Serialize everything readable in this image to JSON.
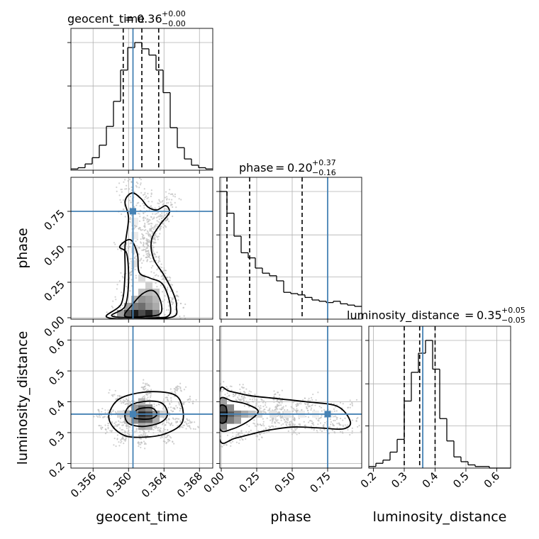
{
  "chart_data": {
    "type": "corner",
    "parameters": [
      "geocent_time",
      "phase",
      "luminosity_distance"
    ],
    "axis_labels": [
      "geocent_time",
      "phase",
      "luminosity_distance"
    ],
    "truths": [
      0.3605,
      0.75,
      0.36
    ],
    "truth_color": "#4682b4",
    "grid": true,
    "ranges": [
      [
        0.3535,
        0.3695
      ],
      [
        -0.01,
        0.99
      ],
      [
        0.185,
        0.645
      ]
    ],
    "ticks": {
      "geocent_time": {
        "values": [
          0.356,
          0.36,
          0.364,
          0.368
        ],
        "labels": [
          "0.356",
          "0.360",
          "0.364",
          "0.368"
        ]
      },
      "phase": {
        "values": [
          0.0,
          0.25,
          0.5,
          0.75
        ],
        "labels": [
          "0.00",
          "0.25",
          "0.50",
          "0.75"
        ]
      },
      "luminosity_distance": {
        "values": [
          0.2,
          0.3,
          0.4,
          0.5,
          0.6
        ],
        "labels": [
          "0.2",
          "0.3",
          "0.4",
          "0.5",
          "0.6"
        ]
      }
    },
    "diagonal_titles": [
      {
        "name": "geocent_time",
        "value": "0.36",
        "plus": "+0.00",
        "minus": "−0.00"
      },
      {
        "name": "phase",
        "value": "0.20",
        "plus": "+0.37",
        "minus": "−0.16"
      },
      {
        "name": "luminosity_distance",
        "value": "0.35",
        "plus": "+0.05",
        "minus": "−0.05"
      }
    ],
    "histograms": [
      {
        "param": "geocent_time",
        "bin_edges": [
          0.3535,
          0.3543,
          0.3551,
          0.3559,
          0.3567,
          0.3575,
          0.3583,
          0.3591,
          0.3599,
          0.3607,
          0.3615,
          0.3623,
          0.3631,
          0.3639,
          0.3647,
          0.3655,
          0.3663,
          0.3671,
          0.3679,
          0.3687,
          0.3695
        ],
        "counts": [
          1,
          2,
          5,
          10,
          20,
          35,
          55,
          80,
          98,
          102,
          97,
          92,
          80,
          62,
          34,
          18,
          9,
          4,
          2,
          1
        ],
        "quantiles": [
          0.3594,
          0.3615,
          0.3634
        ]
      },
      {
        "param": "phase",
        "bin_edges": [
          -0.01,
          0.04,
          0.09,
          0.14,
          0.19,
          0.24,
          0.29,
          0.34,
          0.39,
          0.44,
          0.49,
          0.54,
          0.59,
          0.64,
          0.69,
          0.74,
          0.79,
          0.84,
          0.89,
          0.94,
          0.99
        ],
        "counts": [
          100,
          83,
          65,
          52,
          48,
          40,
          36,
          34,
          30,
          21,
          20,
          19,
          17,
          15,
          14,
          13,
          14,
          12,
          11,
          10
        ],
        "quantiles": [
          0.04,
          0.2,
          0.57
        ]
      },
      {
        "param": "luminosity_distance",
        "bin_edges": [
          0.185,
          0.208,
          0.231,
          0.254,
          0.277,
          0.3,
          0.323,
          0.346,
          0.369,
          0.392,
          0.415,
          0.438,
          0.461,
          0.484,
          0.507,
          0.53,
          0.553,
          0.576,
          0.599,
          0.622,
          0.645
        ],
        "counts": [
          1,
          3,
          5,
          10,
          18,
          42,
          60,
          72,
          80,
          62,
          31,
          17,
          7,
          4,
          2,
          1,
          1,
          0,
          0,
          0
        ],
        "quantiles": [
          0.3,
          0.35,
          0.4
        ]
      }
    ],
    "pairs": [
      {
        "x": "geocent_time",
        "y": "phase",
        "density_blocks": [
          {
            "x": 0.3607,
            "y": 0.03,
            "level": 0.95
          },
          {
            "x": 0.3615,
            "y": 0.03,
            "level": 0.75
          },
          {
            "x": 0.3623,
            "y": 0.03,
            "level": 0.9
          },
          {
            "x": 0.3599,
            "y": 0.03,
            "level": 0.7
          },
          {
            "x": 0.3631,
            "y": 0.03,
            "level": 0.55
          },
          {
            "x": 0.3591,
            "y": 0.03,
            "level": 0.4
          },
          {
            "x": 0.3607,
            "y": 0.08,
            "level": 0.55
          },
          {
            "x": 0.3615,
            "y": 0.08,
            "level": 0.6
          },
          {
            "x": 0.3623,
            "y": 0.08,
            "level": 0.45
          },
          {
            "x": 0.3631,
            "y": 0.08,
            "level": 0.35
          },
          {
            "x": 0.3599,
            "y": 0.08,
            "level": 0.4
          },
          {
            "x": 0.3615,
            "y": 0.13,
            "level": 0.45
          },
          {
            "x": 0.3623,
            "y": 0.13,
            "level": 0.4
          },
          {
            "x": 0.3631,
            "y": 0.13,
            "level": 0.3
          },
          {
            "x": 0.3607,
            "y": 0.13,
            "level": 0.3
          },
          {
            "x": 0.3623,
            "y": 0.18,
            "level": 0.3
          },
          {
            "x": 0.3631,
            "y": 0.18,
            "level": 0.25
          },
          {
            "x": 0.3615,
            "y": 0.18,
            "level": 0.25
          },
          {
            "x": 0.3623,
            "y": 0.23,
            "level": 0.2
          },
          {
            "x": 0.3615,
            "y": 0.28,
            "level": 0.15
          },
          {
            "x": 0.3607,
            "y": 0.38,
            "level": 0.12
          },
          {
            "x": 0.3607,
            "y": 0.48,
            "level": 0.1
          },
          {
            "x": 0.3607,
            "y": 0.58,
            "level": 0.08
          },
          {
            "x": 0.3607,
            "y": 0.68,
            "level": 0.07
          }
        ],
        "contours": [
          {
            "level": "inner",
            "points": [
              [
                0.3596,
                0.01
              ],
              [
                0.3604,
                0.09
              ],
              [
                0.3616,
                0.17
              ],
              [
                0.3628,
                0.19
              ],
              [
                0.3636,
                0.12
              ],
              [
                0.3636,
                0.03
              ],
              [
                0.362,
                0.01
              ]
            ]
          },
          {
            "level": "middle",
            "points": [
              [
                0.3582,
                0.01
              ],
              [
                0.3596,
                0.08
              ],
              [
                0.36,
                0.25
              ],
              [
                0.3598,
                0.45
              ],
              [
                0.359,
                0.5
              ],
              [
                0.3602,
                0.55
              ],
              [
                0.361,
                0.45
              ],
              [
                0.3612,
                0.32
              ],
              [
                0.3624,
                0.28
              ],
              [
                0.3638,
                0.24
              ],
              [
                0.3646,
                0.12
              ],
              [
                0.3646,
                0.02
              ],
              [
                0.363,
                0.0
              ]
            ]
          },
          {
            "level": "outer",
            "points": [
              [
                0.3577,
                0.0
              ],
              [
                0.3592,
                0.1
              ],
              [
                0.3596,
                0.3
              ],
              [
                0.3596,
                0.5
              ],
              [
                0.36,
                0.7
              ],
              [
                0.3596,
                0.82
              ],
              [
                0.3604,
                0.88
              ],
              [
                0.3614,
                0.84
              ],
              [
                0.3622,
                0.78
              ],
              [
                0.3632,
                0.76
              ],
              [
                0.3642,
                0.79
              ],
              [
                0.3646,
                0.74
              ],
              [
                0.3636,
                0.66
              ],
              [
                0.3626,
                0.55
              ],
              [
                0.3628,
                0.42
              ],
              [
                0.364,
                0.3
              ],
              [
                0.365,
                0.18
              ],
              [
                0.3654,
                0.08
              ],
              [
                0.3646,
                0.0
              ]
            ]
          }
        ]
      },
      {
        "x": "geocent_time",
        "y": "luminosity_distance",
        "density_blocks": [
          {
            "x": 0.3615,
            "y": 0.36,
            "level": 0.9
          },
          {
            "x": 0.3623,
            "y": 0.36,
            "level": 0.8
          },
          {
            "x": 0.3607,
            "y": 0.36,
            "level": 0.6
          },
          {
            "x": 0.3615,
            "y": 0.34,
            "level": 0.7
          },
          {
            "x": 0.3623,
            "y": 0.34,
            "level": 0.65
          },
          {
            "x": 0.3615,
            "y": 0.38,
            "level": 0.6
          },
          {
            "x": 0.3623,
            "y": 0.38,
            "level": 0.5
          },
          {
            "x": 0.3607,
            "y": 0.34,
            "level": 0.45
          },
          {
            "x": 0.3631,
            "y": 0.36,
            "level": 0.45
          },
          {
            "x": 0.3599,
            "y": 0.36,
            "level": 0.35
          },
          {
            "x": 0.3607,
            "y": 0.38,
            "level": 0.4
          },
          {
            "x": 0.3631,
            "y": 0.34,
            "level": 0.35
          },
          {
            "x": 0.3615,
            "y": 0.32,
            "level": 0.35
          },
          {
            "x": 0.3623,
            "y": 0.32,
            "level": 0.3
          },
          {
            "x": 0.3615,
            "y": 0.4,
            "level": 0.3
          },
          {
            "x": 0.3599,
            "y": 0.34,
            "level": 0.25
          },
          {
            "x": 0.3639,
            "y": 0.36,
            "level": 0.2
          },
          {
            "x": 0.3591,
            "y": 0.36,
            "level": 0.15
          }
        ],
        "contours": [
          {
            "level": "inner",
            "points": [
              [
                0.3606,
                0.35
              ],
              [
                0.361,
                0.375
              ],
              [
                0.3626,
                0.38
              ],
              [
                0.3632,
                0.36
              ],
              [
                0.3625,
                0.345
              ],
              [
                0.361,
                0.345
              ]
            ]
          },
          {
            "level": "middle",
            "points": [
              [
                0.3596,
                0.36
              ],
              [
                0.3603,
                0.39
              ],
              [
                0.3622,
                0.402
              ],
              [
                0.3638,
                0.395
              ],
              [
                0.3644,
                0.36
              ],
              [
                0.3636,
                0.333
              ],
              [
                0.3616,
                0.32
              ],
              [
                0.36,
                0.33
              ]
            ]
          },
          {
            "level": "outer",
            "points": [
              [
                0.3578,
                0.36
              ],
              [
                0.359,
                0.41
              ],
              [
                0.362,
                0.432
              ],
              [
                0.365,
                0.425
              ],
              [
                0.366,
                0.39
              ],
              [
                0.366,
                0.33
              ],
              [
                0.364,
                0.295
              ],
              [
                0.3616,
                0.285
              ],
              [
                0.3596,
                0.29
              ],
              [
                0.3582,
                0.32
              ]
            ]
          }
        ]
      },
      {
        "x": "phase",
        "y": "luminosity_distance",
        "density_blocks": [
          {
            "x": 0.015,
            "y": 0.36,
            "level": 0.95
          },
          {
            "x": 0.015,
            "y": 0.34,
            "level": 0.8
          },
          {
            "x": 0.015,
            "y": 0.38,
            "level": 0.75
          },
          {
            "x": 0.065,
            "y": 0.36,
            "level": 0.7
          },
          {
            "x": 0.065,
            "y": 0.34,
            "level": 0.55
          },
          {
            "x": 0.065,
            "y": 0.38,
            "level": 0.5
          },
          {
            "x": 0.115,
            "y": 0.36,
            "level": 0.5
          },
          {
            "x": 0.115,
            "y": 0.34,
            "level": 0.4
          },
          {
            "x": 0.165,
            "y": 0.36,
            "level": 0.35
          },
          {
            "x": 0.215,
            "y": 0.36,
            "level": 0.25
          },
          {
            "x": 0.015,
            "y": 0.32,
            "level": 0.45
          },
          {
            "x": 0.015,
            "y": 0.4,
            "level": 0.4
          },
          {
            "x": 0.265,
            "y": 0.36,
            "level": 0.18
          },
          {
            "x": 0.365,
            "y": 0.36,
            "level": 0.12
          },
          {
            "x": 0.465,
            "y": 0.36,
            "level": 0.1
          },
          {
            "x": 0.565,
            "y": 0.36,
            "level": 0.08
          },
          {
            "x": 0.665,
            "y": 0.36,
            "level": 0.07
          },
          {
            "x": 0.765,
            "y": 0.36,
            "level": 0.06
          }
        ],
        "contours": [
          {
            "level": "inner",
            "points": [
              [
                -0.01,
                0.335
              ],
              [
                0.03,
                0.335
              ],
              [
                0.04,
                0.36
              ],
              [
                0.03,
                0.385
              ],
              [
                -0.01,
                0.385
              ]
            ]
          },
          {
            "level": "middle",
            "points": [
              [
                -0.01,
                0.312
              ],
              [
                0.08,
                0.312
              ],
              [
                0.2,
                0.34
              ],
              [
                0.26,
                0.37
              ],
              [
                0.18,
                0.392
              ],
              [
                0.08,
                0.402
              ],
              [
                -0.01,
                0.408
              ]
            ]
          },
          {
            "level": "outer",
            "points": [
              [
                -0.01,
                0.276
              ],
              [
                0.1,
                0.282
              ],
              [
                0.3,
                0.305
              ],
              [
                0.5,
                0.318
              ],
              [
                0.7,
                0.315
              ],
              [
                0.86,
                0.312
              ],
              [
                0.91,
                0.335
              ],
              [
                0.82,
                0.385
              ],
              [
                0.6,
                0.4
              ],
              [
                0.4,
                0.41
              ],
              [
                0.2,
                0.42
              ],
              [
                0.06,
                0.434
              ],
              [
                -0.01,
                0.436
              ]
            ]
          }
        ]
      }
    ]
  }
}
